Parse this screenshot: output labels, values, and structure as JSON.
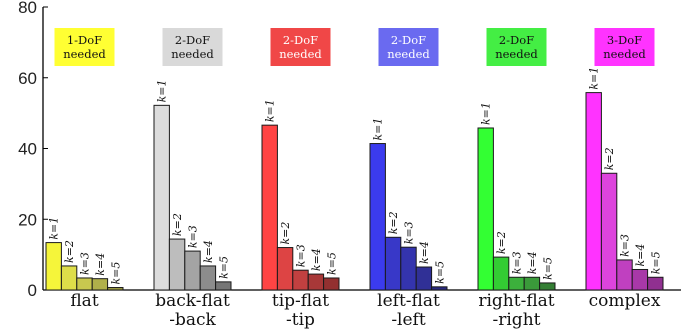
{
  "chart_data": {
    "type": "bar",
    "ylim": [
      0,
      80
    ],
    "yticks": [
      0,
      20,
      40,
      60,
      80
    ],
    "groups": [
      {
        "name": "flat",
        "label_lines": [
          "flat"
        ],
        "badge_lines": [
          "1-DoF",
          "needed"
        ],
        "badge_color": "#ffff33",
        "badge_text_color": "#111111",
        "colors": [
          "#f5f53a",
          "#dede49",
          "#c8c84f",
          "#b0b04a",
          "#9a9a40"
        ],
        "k_labels": [
          "k=1",
          "k=2",
          "k=3",
          "k=4",
          "k=5"
        ],
        "values": [
          13.4,
          6.8,
          3.4,
          3.2,
          0.7
        ]
      },
      {
        "name": "back-flat -back",
        "label_lines": [
          "back-flat",
          "-back"
        ],
        "badge_lines": [
          "2-DoF",
          "needed"
        ],
        "badge_color": "#d9d9d9",
        "badge_text_color": "#111111",
        "colors": [
          "#dcdcdc",
          "#bdbdbd",
          "#a4a4a4",
          "#8c8c8c",
          "#767676"
        ],
        "k_labels": [
          "k=1",
          "k=2",
          "k=3",
          "k=4",
          "k=5"
        ],
        "values": [
          52.2,
          14.4,
          11.0,
          6.8,
          2.3
        ]
      },
      {
        "name": "tip-flat -tip",
        "label_lines": [
          "tip-flat",
          "-tip"
        ],
        "badge_lines": [
          "2-DoF",
          "needed"
        ],
        "badge_color": "#f04747",
        "badge_text_color": "#ffffff",
        "colors": [
          "#ff4444",
          "#dd4444",
          "#c24040",
          "#a83838",
          "#933030"
        ],
        "k_labels": [
          "k=1",
          "k=2",
          "k=3",
          "k=4",
          "k=5"
        ],
        "values": [
          46.6,
          12.0,
          5.6,
          4.5,
          3.4
        ]
      },
      {
        "name": "left-flat -left",
        "label_lines": [
          "left-flat",
          "-left"
        ],
        "badge_lines": [
          "2-DoF",
          "needed"
        ],
        "badge_color": "#6a6af0",
        "badge_text_color": "#ffffff",
        "colors": [
          "#3b3bee",
          "#3838c8",
          "#3434ae",
          "#303096",
          "#2a2a80"
        ],
        "k_labels": [
          "k=1",
          "k=2",
          "k=3",
          "k=4",
          "k=5"
        ],
        "values": [
          41.4,
          14.9,
          12.1,
          6.5,
          0.9
        ]
      },
      {
        "name": "right-flat -right",
        "label_lines": [
          "right-flat",
          "-right"
        ],
        "badge_lines": [
          "2-DoF",
          "needed"
        ],
        "badge_color": "#44ee44",
        "badge_text_color": "#111111",
        "colors": [
          "#33ff33",
          "#33cc33",
          "#3cb03c",
          "#3a9a3a",
          "#347f34"
        ],
        "k_labels": [
          "k=1",
          "k=2",
          "k=3",
          "k=4",
          "k=5"
        ],
        "values": [
          45.8,
          9.3,
          3.6,
          3.6,
          2.0
        ]
      },
      {
        "name": "complex",
        "label_lines": [
          "complex"
        ],
        "badge_lines": [
          "3-DoF",
          "needed"
        ],
        "badge_color": "#ff33ff",
        "badge_text_color": "#111111",
        "colors": [
          "#ff33ff",
          "#dd44dd",
          "#c040c0",
          "#a838a8",
          "#903090"
        ],
        "k_labels": [
          "k=1",
          "k=2",
          "k=3",
          "k=4",
          "k=5"
        ],
        "values": [
          55.8,
          33.0,
          8.5,
          5.8,
          3.6
        ]
      }
    ]
  }
}
